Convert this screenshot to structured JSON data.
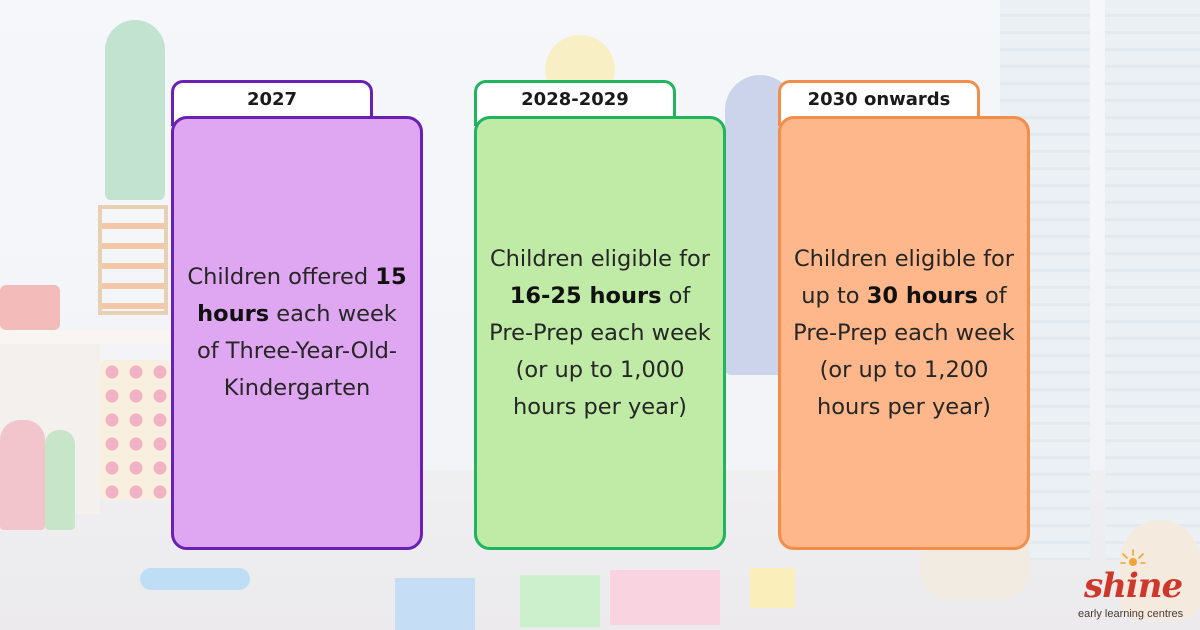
{
  "columns": [
    {
      "tab": "2027",
      "text_before": "Children offered ",
      "text_bold": "15 hours",
      "text_after": " each week of Three-Year-Old-Kindergarten",
      "border_color": "#6a20b3",
      "fill_color": "#dfa6f2"
    },
    {
      "tab": "2028-2029",
      "text_before": "Children eligible for ",
      "text_bold": "16-25 hours",
      "text_after": " of Pre-Prep each week (or up to 1,000 hours per year)",
      "border_color": "#1fb45d",
      "fill_color": "#bfeba7"
    },
    {
      "tab": "2030 onwards",
      "text_before": "Children eligible for up to ",
      "text_bold": "30 hours",
      "text_after": " of Pre-Prep each week (or up to 1,200 hours per year)",
      "border_color": "#f18f4a",
      "fill_color": "#fdb78a"
    }
  ],
  "logo": {
    "name": "shine",
    "tagline": "early learning centres",
    "color": "#d0372b"
  }
}
